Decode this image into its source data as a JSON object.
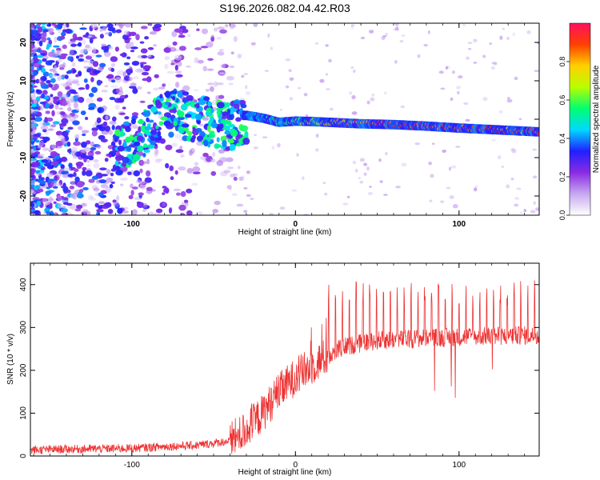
{
  "chart_data": [
    {
      "type": "heatmap",
      "title": "S196.2026.082.04.42.R03",
      "xlabel": "Height of straight line (km)",
      "ylabel": "Frequency (Hz)",
      "xlim": [
        -162,
        149
      ],
      "ylim": [
        -25,
        25
      ],
      "xticks": [
        -100,
        0,
        100
      ],
      "yticks": [
        -20,
        -10,
        0,
        10,
        20
      ],
      "colorbar": {
        "label": "Normalized spectral amplitude",
        "range": [
          0,
          1
        ],
        "ticks": [
          0.0,
          0.2,
          0.4,
          0.6,
          0.8
        ],
        "tick_labels": [
          "0.0",
          "0.2",
          "0.4",
          "0.6",
          "0.8"
        ],
        "colormap": [
          "#ffffff",
          "#c7a8f0",
          "#8a2be2",
          "#2020ff",
          "#00d8ff",
          "#00ff70",
          "#b8ff00",
          "#ffd000",
          "#ff4000",
          "#ff1060"
        ]
      },
      "ridge": {
        "x": [
          -30,
          -20,
          -10,
          0,
          10,
          20,
          40,
          60,
          80,
          100,
          120,
          149
        ],
        "y": [
          1.0,
          0.3,
          -0.8,
          -0.5,
          -0.6,
          -0.8,
          -1.2,
          -1.4,
          -1.8,
          -2.3,
          -2.7,
          -3.3
        ]
      }
    },
    {
      "type": "line",
      "xlabel": "Height of straight line (km)",
      "ylabel": "SNR (10 * v/v)",
      "xlim": [
        -162,
        149
      ],
      "ylim": [
        0,
        450
      ],
      "xticks": [
        -100,
        0,
        100
      ],
      "yticks": [
        0,
        100,
        200,
        300,
        400
      ],
      "color": "#ee3333",
      "trend": {
        "x": [
          -162,
          -140,
          -100,
          -80,
          -60,
          -40,
          -30,
          -20,
          -10,
          0,
          10,
          20,
          30,
          50,
          80,
          100,
          149
        ],
        "y": [
          14,
          16,
          18,
          22,
          25,
          35,
          60,
          100,
          150,
          185,
          210,
          235,
          255,
          270,
          275,
          278,
          282
        ]
      },
      "spike_x_from": 20,
      "spike_x_to": 149,
      "spike_spacing": 4.2,
      "spike_peak": 410
    }
  ]
}
